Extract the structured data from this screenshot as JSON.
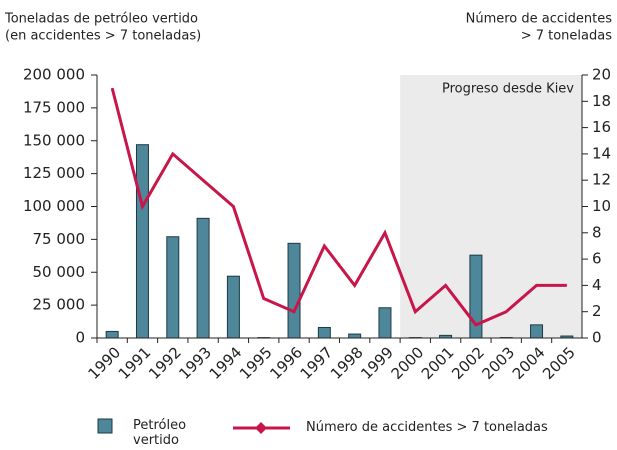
{
  "chart_data": {
    "type": "bar_line",
    "y_axis_title": [
      "Toneladas de petróleo vertido",
      "(en accidentes > 7 toneladas)"
    ],
    "y2_axis_title": [
      "Número de accidentes",
      "> 7 toneladas"
    ],
    "categories": [
      "1990",
      "1991",
      "1992",
      "1993",
      "1994",
      "1995",
      "1996",
      "1997",
      "1998",
      "1999",
      "2000",
      "2001",
      "2002",
      "2003",
      "2004",
      "2005"
    ],
    "series": [
      {
        "name": "Petróleo vertido",
        "color": "#4e8799",
        "kind": "bar",
        "values": [
          5000,
          147000,
          77000,
          91000,
          47000,
          300,
          72000,
          8000,
          3000,
          23000,
          300,
          2000,
          63000,
          300,
          10000,
          1500
        ]
      },
      {
        "name": "Número de accidentes > 7 toneladas",
        "color": "#c8164a",
        "kind": "line",
        "axis": "y2",
        "values": [
          19,
          10,
          14,
          12,
          10,
          3,
          2,
          7,
          4,
          8,
          2,
          4,
          1,
          2,
          4,
          4
        ]
      }
    ],
    "ylim": [
      0,
      200000
    ],
    "yticks": [
      0,
      {
        "value": 25000,
        "label": "25 000"
      },
      {
        "value": 50000,
        "label": "50 000"
      },
      {
        "value": 75000,
        "label": "75 000"
      },
      {
        "value": 100000,
        "label": "100 000"
      },
      {
        "value": 125000,
        "label": "125 000"
      },
      {
        "value": 150000,
        "label": "150 000"
      },
      {
        "value": 175000,
        "label": "175 000"
      },
      {
        "value": 200000,
        "label": "200 000"
      }
    ],
    "y2lim": [
      0,
      20
    ],
    "y2ticks": [
      0,
      2,
      4,
      6,
      8,
      10,
      12,
      14,
      16,
      18,
      20
    ],
    "highlight": {
      "label": "Progreso desde Kiev",
      "start": "2000"
    }
  }
}
